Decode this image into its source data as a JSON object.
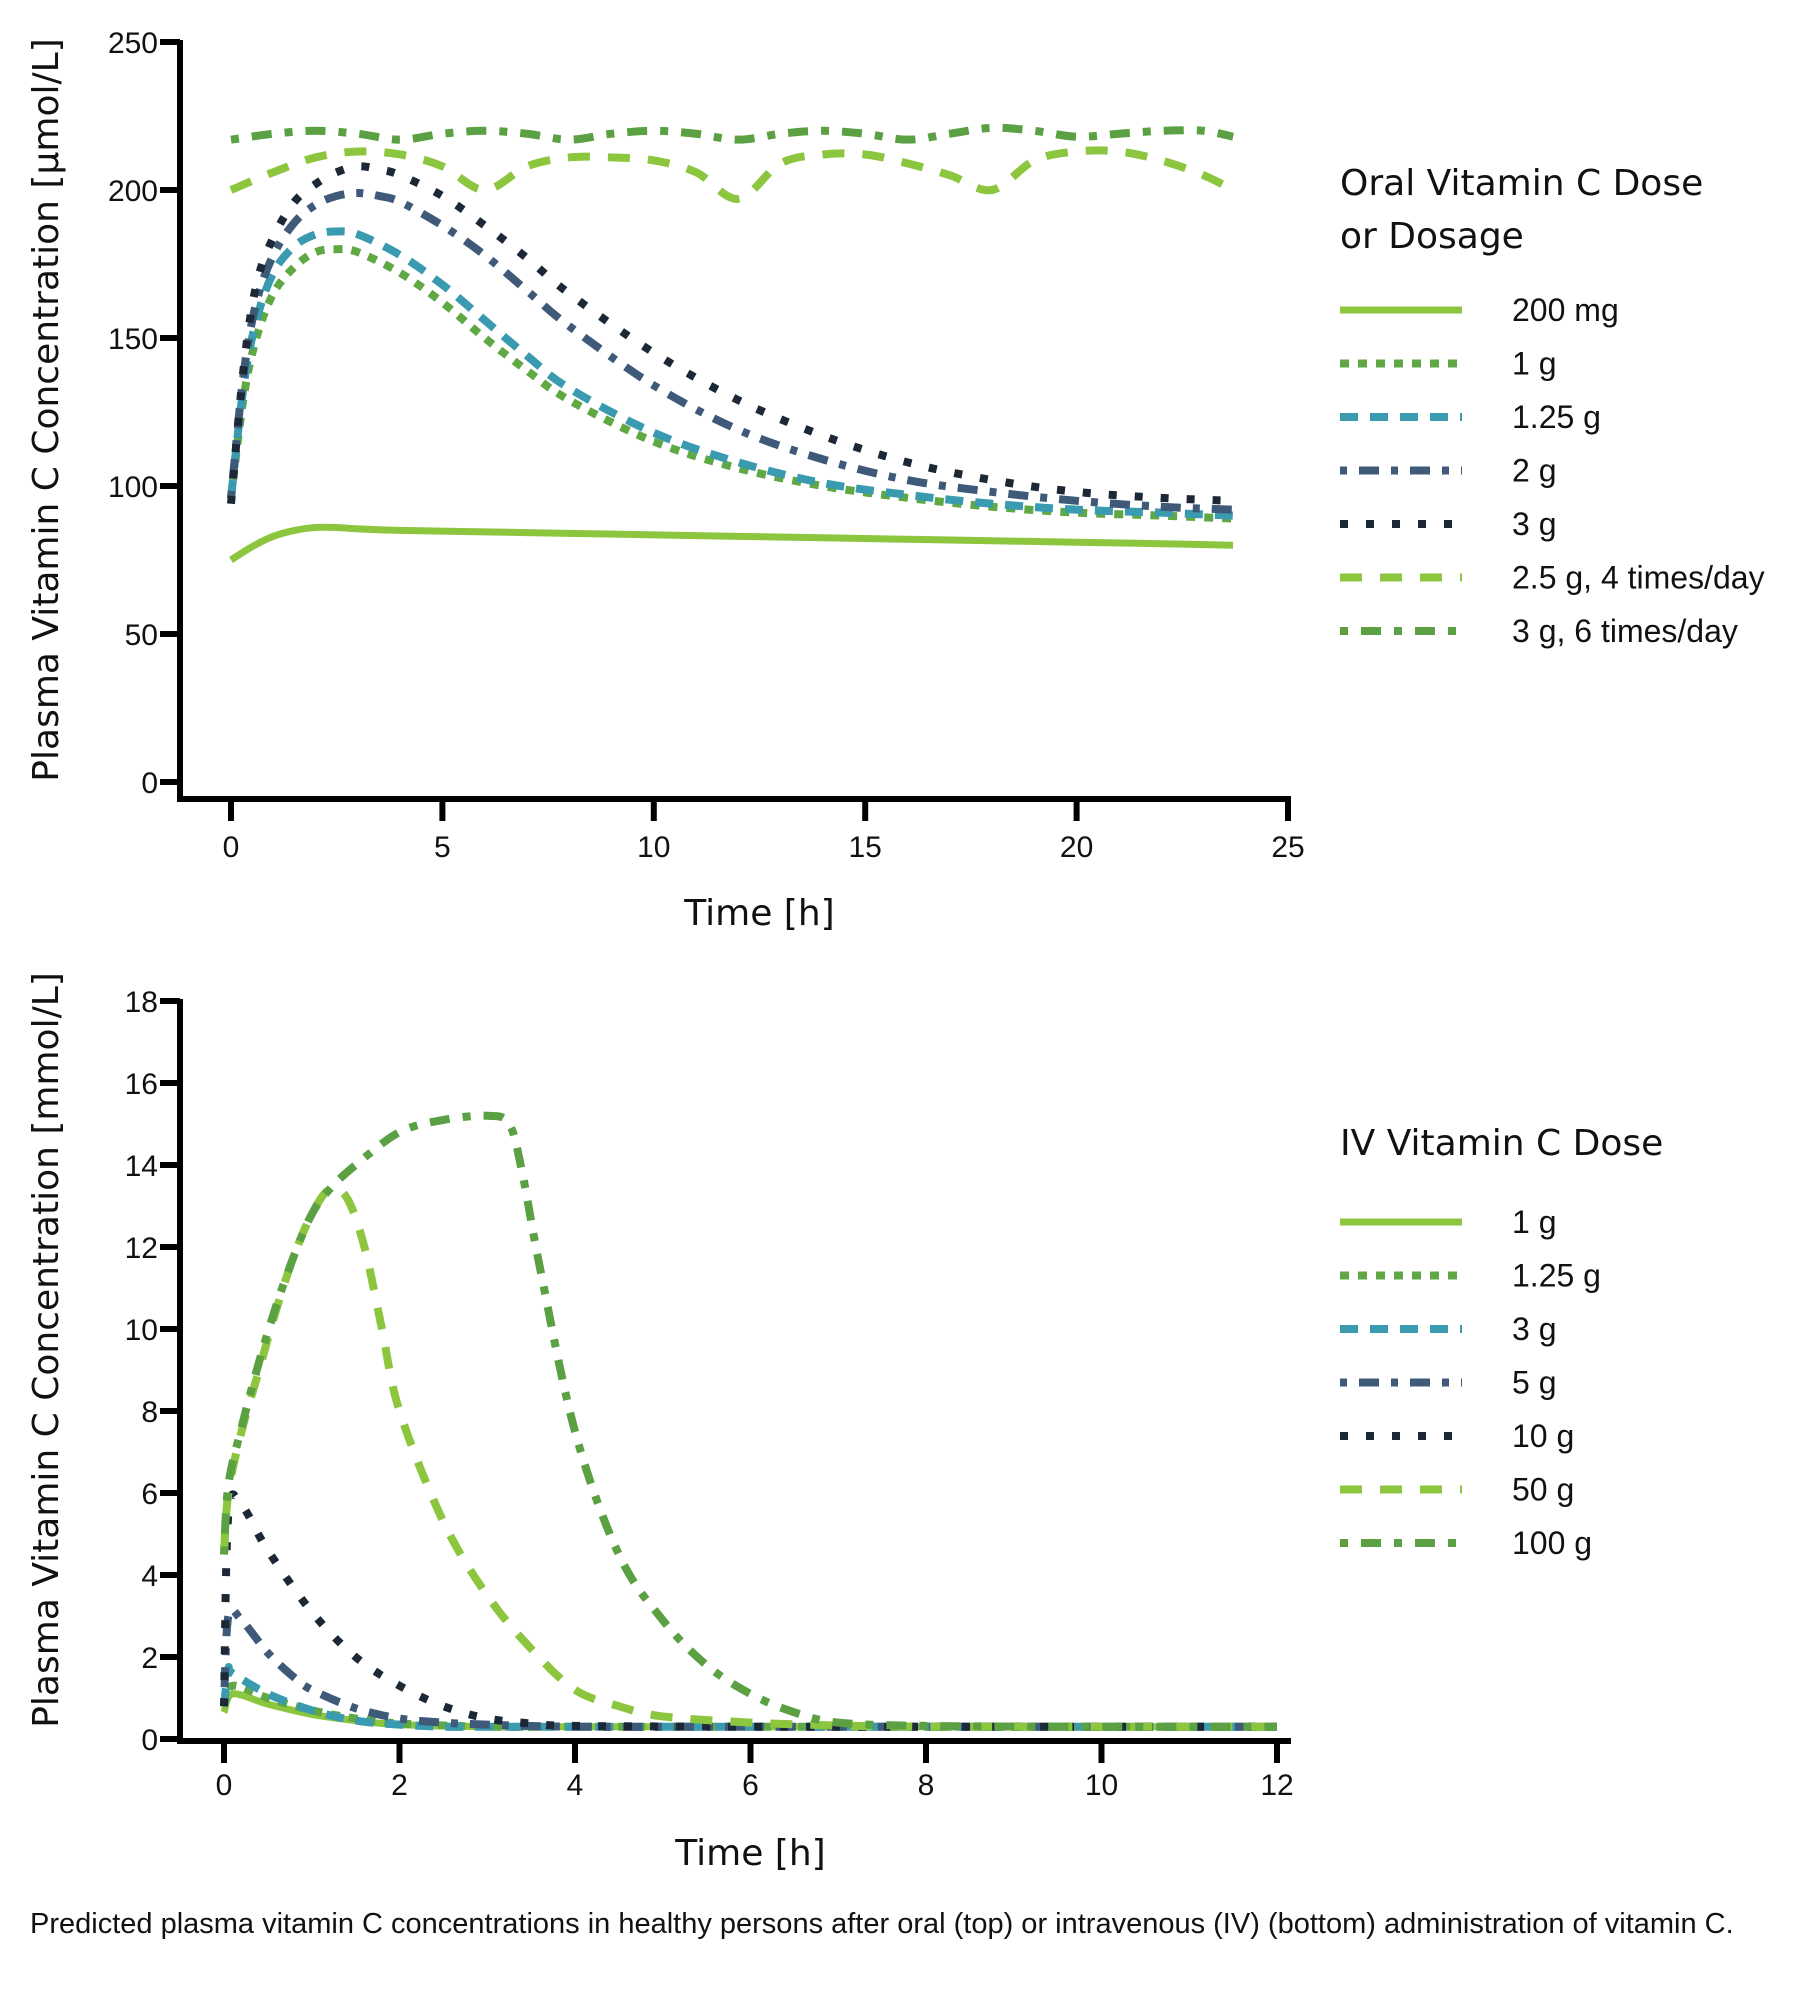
{
  "caption": "Predicted plasma vitamin C concentrations in healthy persons after oral (top) or intravenous (IV) (bottom) administration of vitamin C.",
  "chart_data": [
    {
      "id": "oral",
      "type": "line",
      "title": "",
      "xlabel": "Time [h]",
      "ylabel": "Plasma Vitamin C Concentration [µmol/L]",
      "xlim": [
        0,
        25
      ],
      "ylim": [
        0,
        250
      ],
      "xticks": [
        0,
        5,
        10,
        15,
        20,
        25
      ],
      "yticks": [
        0,
        50,
        100,
        150,
        200,
        250
      ],
      "grid": false,
      "legend_title": "Oral Vitamin C Dose or Dosage",
      "legend_title_lines": [
        "Oral Vitamin C Dose",
        "or Dosage"
      ],
      "legend_position": "right",
      "series": [
        {
          "name": "200 mg",
          "color": "#8cc63f",
          "style": "solid",
          "x": [
            0,
            0.5,
            1,
            1.5,
            2,
            2.5,
            3,
            4,
            6,
            8,
            10,
            12,
            14,
            16,
            18,
            20,
            22,
            23.7
          ],
          "y": [
            75,
            79.5,
            83,
            85,
            86,
            86,
            85.5,
            85,
            84.5,
            84,
            83.5,
            83,
            82.5,
            82,
            81.5,
            81,
            80.5,
            80
          ]
        },
        {
          "name": "1 g",
          "color": "#5fa843",
          "style": "dot-fine",
          "x": [
            0,
            0.3,
            0.6,
            1,
            1.5,
            2,
            2.5,
            3,
            4,
            5,
            6,
            7,
            8,
            10,
            12,
            14,
            16,
            18,
            20,
            22,
            23.7
          ],
          "y": [
            96,
            130,
            150,
            165,
            174,
            179,
            180,
            179,
            172,
            162,
            150,
            139,
            129,
            115,
            106,
            100,
            96,
            93,
            91,
            90,
            89
          ]
        },
        {
          "name": "1.25 g",
          "color": "#3a9ab0",
          "style": "dash-medium",
          "x": [
            0,
            0.3,
            0.6,
            1,
            1.5,
            2,
            2.5,
            3,
            4,
            5,
            6,
            7,
            8,
            10,
            12,
            14,
            16,
            18,
            20,
            22,
            23.7
          ],
          "y": [
            96,
            134,
            156,
            172,
            181,
            185,
            186,
            185,
            178,
            168,
            156,
            144,
            133,
            118,
            108,
            101,
            97,
            94,
            92,
            91,
            90
          ]
        },
        {
          "name": "2 g",
          "color": "#3f5a78",
          "style": "dash-dot",
          "x": [
            0,
            0.3,
            0.6,
            1,
            1.5,
            2,
            2.5,
            3,
            3.5,
            4,
            5,
            6,
            7,
            8,
            10,
            12,
            14,
            16,
            18,
            20,
            22,
            23.7
          ],
          "y": [
            96,
            138,
            162,
            178,
            189,
            195,
            198,
            199,
            198,
            196,
            188,
            178,
            166,
            154,
            134,
            119,
            109,
            102,
            98,
            95,
            93,
            92
          ]
        },
        {
          "name": "3 g",
          "color": "#1c2836",
          "style": "dot-square",
          "x": [
            0,
            0.3,
            0.6,
            1,
            1.5,
            2,
            2.5,
            3,
            3.5,
            4,
            5,
            6,
            7,
            8,
            10,
            12,
            14,
            16,
            18,
            20,
            22,
            23.7
          ],
          "y": [
            94,
            140,
            168,
            184,
            196,
            202,
            206,
            208,
            207,
            205,
            198,
            188,
            177,
            165,
            145,
            129,
            117,
            108,
            102,
            98,
            96,
            95
          ]
        },
        {
          "name": "2.5 g, 4 times/day",
          "color": "#8cc63f",
          "style": "dash-long",
          "x": [
            0,
            1,
            2,
            3,
            4,
            5,
            6,
            7,
            8,
            9,
            10,
            11,
            12,
            13,
            14,
            15,
            16,
            17,
            18,
            19,
            20,
            21,
            22,
            23,
            23.7
          ],
          "y": [
            200,
            206,
            211,
            213,
            212,
            208,
            200,
            208,
            211,
            211,
            210,
            206,
            197,
            209,
            212,
            212,
            209,
            205,
            200,
            210,
            213,
            213,
            210,
            205,
            200
          ]
        },
        {
          "name": "3 g, 6 times/day",
          "color": "#5ba043",
          "style": "dash-dot-wide",
          "x": [
            0,
            1,
            2,
            3,
            4,
            5,
            6,
            7,
            8,
            9,
            10,
            11,
            12,
            13,
            14,
            15,
            16,
            17,
            18,
            19,
            20,
            21,
            22,
            23,
            23.7
          ],
          "y": [
            217,
            219,
            220,
            219,
            217,
            219,
            220,
            219,
            217,
            219,
            220,
            219,
            217,
            219,
            220,
            219,
            217,
            219,
            221,
            220,
            218,
            219,
            220,
            220,
            218
          ]
        }
      ]
    },
    {
      "id": "iv",
      "type": "line",
      "title": "",
      "xlabel": "Time [h]",
      "ylabel": "Plasma Vitamin C Concentration [mmol/L]",
      "xlim": [
        0,
        12
      ],
      "ylim": [
        0,
        18
      ],
      "xticks": [
        0,
        2,
        4,
        6,
        8,
        10,
        12
      ],
      "yticks": [
        0,
        2,
        4,
        6,
        8,
        10,
        12,
        14,
        16,
        18
      ],
      "grid": false,
      "legend_title": "IV Vitamin C Dose",
      "legend_title_lines": [
        "IV Vitamin C Dose"
      ],
      "legend_position": "right",
      "series": [
        {
          "name": "1 g",
          "color": "#8cc63f",
          "style": "solid",
          "x": [
            0,
            0.1,
            0.5,
            1,
            1.5,
            2,
            3,
            4,
            6,
            8,
            10,
            12
          ],
          "y": [
            0.65,
            1.1,
            0.85,
            0.6,
            0.45,
            0.35,
            0.3,
            0.3,
            0.3,
            0.3,
            0.3,
            0.3
          ]
        },
        {
          "name": "1.25 g",
          "color": "#5fa843",
          "style": "dot-fine",
          "x": [
            0,
            0.1,
            0.5,
            1,
            1.5,
            2,
            3,
            4,
            6,
            8,
            10,
            12
          ],
          "y": [
            0.8,
            1.3,
            1.0,
            0.7,
            0.5,
            0.38,
            0.3,
            0.3,
            0.3,
            0.3,
            0.3,
            0.3
          ]
        },
        {
          "name": "3 g",
          "color": "#3a9ab0",
          "style": "dash-medium",
          "x": [
            0,
            0.05,
            0.1,
            0.5,
            1,
            1.5,
            2,
            2.5,
            3,
            4,
            6,
            8,
            10,
            12
          ],
          "y": [
            0.8,
            1.7,
            1.6,
            1.1,
            0.7,
            0.45,
            0.35,
            0.3,
            0.3,
            0.3,
            0.3,
            0.3,
            0.3,
            0.3
          ]
        },
        {
          "name": "5 g",
          "color": "#3f5a78",
          "style": "dash-dot",
          "x": [
            0,
            0.05,
            0.2,
            0.5,
            0.8,
            1,
            1.5,
            2,
            2.5,
            3,
            4,
            6,
            8,
            10,
            12
          ],
          "y": [
            0.8,
            3.0,
            2.9,
            2.1,
            1.5,
            1.2,
            0.75,
            0.5,
            0.4,
            0.35,
            0.3,
            0.3,
            0.3,
            0.3,
            0.3
          ]
        },
        {
          "name": "10 g",
          "color": "#1c2836",
          "style": "dot-square",
          "x": [
            0,
            0.05,
            0.2,
            0.5,
            1,
            1.5,
            2,
            2.5,
            3,
            3.5,
            4,
            6,
            8,
            10,
            12
          ],
          "y": [
            0.8,
            5.5,
            5.7,
            4.6,
            3.1,
            2.0,
            1.3,
            0.8,
            0.5,
            0.38,
            0.32,
            0.3,
            0.3,
            0.3,
            0.3
          ]
        },
        {
          "name": "50 g",
          "color": "#8cc63f",
          "style": "dash-long",
          "x": [
            0,
            0.05,
            0.2,
            0.4,
            0.6,
            0.8,
            1.0,
            1.2,
            1.4,
            1.6,
            1.8,
            2.0,
            2.5,
            3.0,
            3.5,
            4.0,
            4.5,
            5,
            6,
            7,
            8,
            10,
            12
          ],
          "y": [
            4.5,
            6.0,
            7.5,
            9.0,
            10.5,
            11.8,
            12.8,
            13.4,
            13.2,
            12.0,
            10.0,
            8.0,
            5.3,
            3.5,
            2.2,
            1.2,
            0.8,
            0.55,
            0.4,
            0.33,
            0.3,
            0.3,
            0.3
          ]
        },
        {
          "name": "100 g",
          "color": "#5ba043",
          "style": "dash-dot-wide",
          "x": [
            0,
            0.05,
            0.2,
            0.4,
            0.6,
            0.8,
            1.0,
            1.2,
            1.5,
            2.0,
            2.5,
            3.0,
            3.25,
            3.4,
            3.6,
            4.0,
            4.5,
            5.0,
            5.5,
            6.0,
            6.5,
            7.0,
            8,
            10,
            12
          ],
          "y": [
            4.5,
            6.2,
            7.6,
            9.2,
            10.6,
            11.8,
            12.8,
            13.4,
            14.0,
            14.8,
            15.1,
            15.2,
            15.0,
            13.8,
            11.5,
            7.5,
            4.5,
            2.9,
            1.8,
            1.1,
            0.65,
            0.4,
            0.32,
            0.3,
            0.3
          ]
        }
      ]
    }
  ]
}
